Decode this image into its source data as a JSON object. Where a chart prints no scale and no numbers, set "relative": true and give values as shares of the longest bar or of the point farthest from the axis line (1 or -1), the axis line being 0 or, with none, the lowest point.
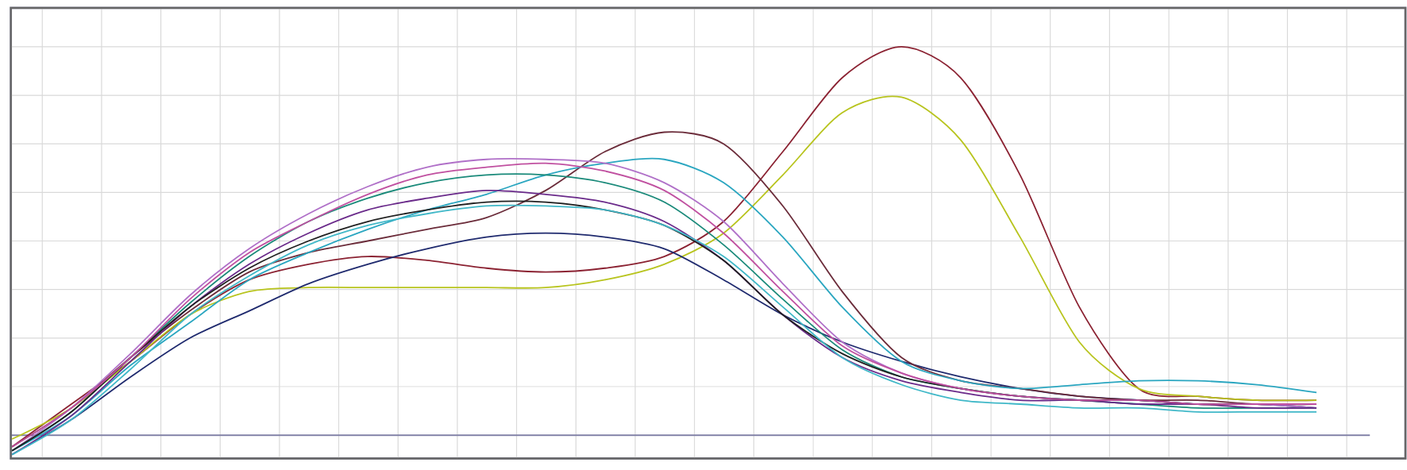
{
  "chart_data": {
    "type": "line",
    "relative": true,
    "grid": true,
    "categories": [
      null,
      null,
      null,
      null,
      null,
      null,
      null,
      null,
      null,
      null,
      null,
      null,
      null,
      null,
      null,
      null,
      null,
      null,
      null,
      null,
      null,
      null,
      null
    ],
    "series": [
      {
        "color": "#8b2232",
        "values": [
          -0.03,
          0.08,
          0.19,
          0.31,
          0.4,
          0.44,
          0.46,
          0.45,
          0.43,
          0.42,
          0.43,
          0.46,
          0.55,
          0.73,
          0.92,
          1.0,
          0.92,
          0.67,
          0.33,
          0.12,
          0.1,
          0.09,
          0.09
        ]
      },
      {
        "color": "#b8c41e",
        "values": [
          -0.01,
          0.07,
          0.19,
          0.31,
          0.37,
          0.38,
          0.38,
          0.38,
          0.38,
          0.38,
          0.4,
          0.44,
          0.52,
          0.67,
          0.83,
          0.87,
          0.76,
          0.51,
          0.24,
          0.12,
          0.1,
          0.09,
          0.09
        ]
      },
      {
        "color": "#1f2a6e",
        "values": [
          -0.05,
          0.04,
          0.15,
          0.25,
          0.32,
          0.39,
          0.44,
          0.48,
          0.51,
          0.52,
          0.51,
          0.48,
          0.4,
          0.31,
          0.24,
          0.19,
          0.15,
          0.12,
          0.1,
          0.09,
          0.08,
          0.08,
          0.07
        ]
      },
      {
        "color": "#6b2c3a",
        "values": [
          -0.03,
          0.07,
          0.2,
          0.32,
          0.42,
          0.47,
          0.5,
          0.53,
          0.56,
          0.63,
          0.73,
          0.78,
          0.75,
          0.59,
          0.37,
          0.2,
          0.14,
          0.12,
          0.1,
          0.09,
          0.09,
          0.08,
          0.08
        ]
      },
      {
        "color": "#2aa6c0",
        "values": [
          -0.04,
          0.05,
          0.18,
          0.29,
          0.4,
          0.47,
          0.53,
          0.58,
          0.62,
          0.67,
          0.7,
          0.71,
          0.65,
          0.51,
          0.33,
          0.19,
          0.14,
          0.12,
          0.13,
          0.14,
          0.14,
          0.13,
          0.11
        ]
      },
      {
        "color": "#b070c8",
        "values": [
          -0.04,
          0.07,
          0.21,
          0.36,
          0.48,
          0.57,
          0.64,
          0.69,
          0.71,
          0.71,
          0.7,
          0.65,
          0.55,
          0.39,
          0.24,
          0.16,
          0.12,
          0.1,
          0.09,
          0.08,
          0.08,
          0.08,
          0.07
        ]
      },
      {
        "color": "#1a8a7a",
        "values": [
          -0.04,
          0.06,
          0.2,
          0.34,
          0.46,
          0.55,
          0.61,
          0.65,
          0.67,
          0.67,
          0.65,
          0.6,
          0.49,
          0.35,
          0.22,
          0.15,
          0.12,
          0.1,
          0.09,
          0.08,
          0.07,
          0.07,
          0.07
        ]
      },
      {
        "color": "#6a2a8a",
        "values": [
          -0.05,
          0.05,
          0.19,
          0.33,
          0.44,
          0.52,
          0.58,
          0.61,
          0.63,
          0.62,
          0.6,
          0.55,
          0.45,
          0.31,
          0.2,
          0.14,
          0.11,
          0.09,
          0.09,
          0.08,
          0.08,
          0.07,
          0.07
        ]
      },
      {
        "color": "#202020",
        "values": [
          -0.04,
          0.06,
          0.2,
          0.33,
          0.43,
          0.5,
          0.55,
          0.58,
          0.6,
          0.6,
          0.58,
          0.54,
          0.45,
          0.31,
          0.21,
          0.15,
          0.12,
          0.1,
          0.09,
          0.09,
          0.08,
          0.08,
          0.08
        ]
      },
      {
        "color": "#40b8c8",
        "values": [
          -0.05,
          0.04,
          0.17,
          0.31,
          0.41,
          0.49,
          0.54,
          0.57,
          0.59,
          0.59,
          0.58,
          0.54,
          0.46,
          0.33,
          0.2,
          0.13,
          0.09,
          0.08,
          0.07,
          0.07,
          0.06,
          0.06,
          0.06
        ]
      },
      {
        "color": "#c050a0",
        "values": [
          -0.03,
          0.07,
          0.2,
          0.35,
          0.47,
          0.55,
          0.62,
          0.67,
          0.69,
          0.7,
          0.68,
          0.63,
          0.52,
          0.37,
          0.23,
          0.16,
          0.12,
          0.1,
          0.09,
          0.09,
          0.08,
          0.08,
          0.08
        ]
      }
    ]
  }
}
